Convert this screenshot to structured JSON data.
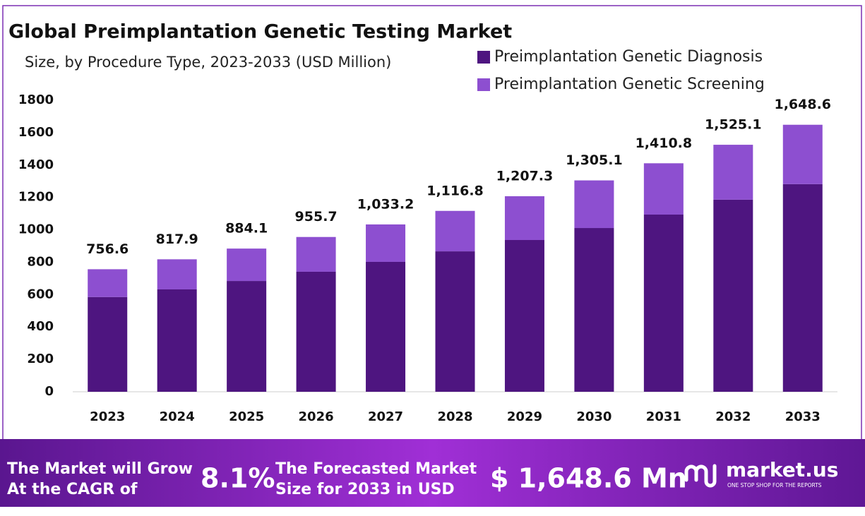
{
  "chart_data": {
    "type": "stacked_bar",
    "title": "Global Preimplantation Genetic Testing Market",
    "subtitle": "Size, by Procedure  Type, 2023-2033 (USD Million)",
    "categories": [
      "2023",
      "2024",
      "2025",
      "2026",
      "2027",
      "2028",
      "2029",
      "2030",
      "2031",
      "2032",
      "2033"
    ],
    "series": [
      {
        "name": "Preimplantation Genetic Diagnosis",
        "color": "#4e1580",
        "values": [
          585,
          632,
          684,
          741,
          802,
          867,
          937,
          1011,
          1094,
          1186,
          1282
        ]
      },
      {
        "name": "Preimplantation Genetic Screening",
        "color": "#8d4fd0",
        "values": [
          171.6,
          185.9,
          200.1,
          214.7,
          231.2,
          249.8,
          270.3,
          294.1,
          316.8,
          339.1,
          366.6
        ]
      }
    ],
    "totals": [
      756.6,
      817.9,
      884.1,
      955.7,
      1033.2,
      1116.8,
      1207.3,
      1305.1,
      1410.8,
      1525.1,
      1648.6
    ],
    "total_labels": [
      "756.6",
      "817.9",
      "884.1",
      "955.7",
      "1,033.2",
      "1,116.8",
      "1,207.3",
      "1,305.1",
      "1,410.8",
      "1,525.1",
      "1,648.6"
    ],
    "ylim": [
      0,
      1800
    ],
    "yticks": [
      0,
      200,
      400,
      600,
      800,
      1000,
      1200,
      1400,
      1600,
      1800
    ],
    "legend": "top-right"
  },
  "footer": {
    "cagr_text": [
      "The Market will Grow",
      "At the CAGR of"
    ],
    "cagr": "8.1%",
    "forecast_text": [
      "The Forecasted Market",
      "Size for 2033 in USD"
    ],
    "forecast": "$ 1,648.6 Mn",
    "brand": "market.us",
    "tagline": "ONE STOP SHOP FOR THE REPORTS"
  }
}
